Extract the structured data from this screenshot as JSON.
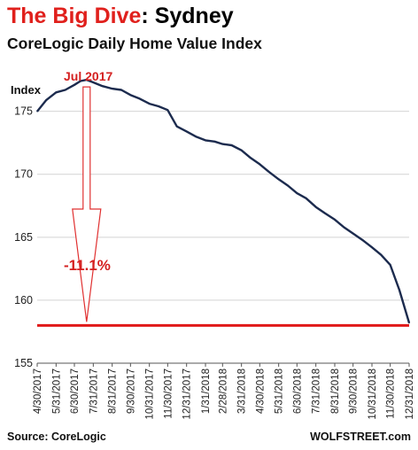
{
  "chart_data": {
    "type": "line",
    "title_highlight": "The Big Dive",
    "title_rest": ": Sydney",
    "subtitle": "CoreLogic Daily Home Value Index",
    "ylabel": "Index",
    "ylim": [
      155,
      178
    ],
    "yticks": [
      155,
      160,
      165,
      170,
      175
    ],
    "grid": "horizontal",
    "x_tick_labels": [
      "4/30/2017",
      "5/31/2017",
      "6/30/2017",
      "7/31/2017",
      "8/31/2017",
      "9/30/2017",
      "10/31/2017",
      "11/30/2017",
      "12/31/2017",
      "1/31/2018",
      "2/28/2018",
      "3/31/2018",
      "4/30/2018",
      "5/31/2018",
      "6/30/2018",
      "7/31/2018",
      "8/31/2018",
      "9/30/2018",
      "10/31/2018",
      "11/30/2018",
      "12/31/2018"
    ],
    "x": [
      "4/30/2017",
      "5/15/2017",
      "5/31/2017",
      "6/15/2017",
      "6/30/2017",
      "7/10/2017",
      "7/20/2017",
      "7/31/2017",
      "8/15/2017",
      "8/31/2017",
      "9/15/2017",
      "9/30/2017",
      "10/15/2017",
      "10/31/2017",
      "11/15/2017",
      "11/30/2017",
      "12/15/2017",
      "12/31/2017",
      "1/15/2018",
      "1/31/2018",
      "2/15/2018",
      "2/28/2018",
      "3/15/2018",
      "3/31/2018",
      "4/15/2018",
      "4/30/2018",
      "5/15/2018",
      "5/31/2018",
      "6/15/2018",
      "6/30/2018",
      "7/15/2018",
      "7/31/2018",
      "8/15/2018",
      "8/31/2018",
      "9/15/2018",
      "9/30/2018",
      "10/15/2018",
      "10/31/2018",
      "11/15/2018",
      "11/30/2018",
      "12/15/2018",
      "12/31/2018"
    ],
    "values": [
      175.0,
      175.9,
      176.5,
      176.7,
      177.1,
      177.4,
      177.5,
      177.3,
      177.0,
      176.8,
      176.7,
      176.3,
      176.0,
      175.6,
      175.4,
      175.1,
      173.8,
      173.4,
      173.0,
      172.7,
      172.6,
      172.4,
      172.3,
      171.9,
      171.3,
      170.8,
      170.2,
      169.6,
      169.1,
      168.5,
      168.1,
      167.4,
      166.9,
      166.4,
      165.8,
      165.3,
      164.8,
      164.2,
      163.6,
      162.8,
      160.8,
      158.2
    ],
    "annotations": {
      "peak_label": "Jul 2017",
      "drop_label": "-11.1%"
    },
    "reference_line": {
      "value": 158.0,
      "color": "#e01818"
    },
    "line_color": "#1c2b4e"
  },
  "footer": {
    "source": "Source: CoreLogic",
    "brand": "WOLFSTREET.com"
  }
}
